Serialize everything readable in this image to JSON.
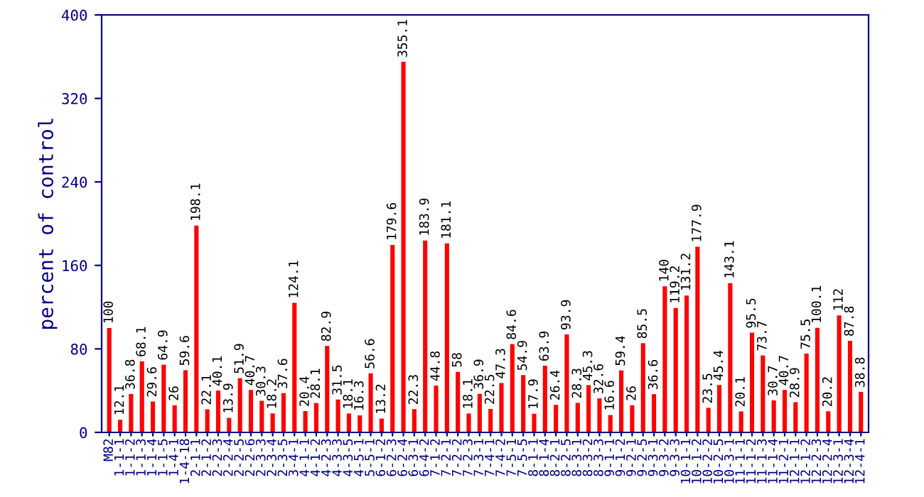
{
  "chart_data": {
    "type": "bar",
    "ylabel": "percent of control",
    "categories": [
      "M82",
      "1-1-1",
      "1-1-2",
      "1-1-3",
      "1-1-4",
      "1-1-5",
      "1-4-1",
      "1-4-18",
      "2-1-1",
      "2-1-2",
      "2-2-3",
      "2-2-4",
      "2-2-5",
      "2-2-6",
      "2-3-3",
      "2-3-4",
      "2-3-5",
      "3-4-1",
      "4-1-1",
      "4-1-2",
      "4-2-3",
      "4-3-3",
      "4-3-5",
      "4-5-1",
      "5-5-1",
      "6-1-2",
      "6-2-3",
      "6-2-4",
      "6-3-1",
      "6-4-2",
      "7-1-2",
      "7-2-1",
      "7-2-2",
      "7-2-3",
      "7-3-1",
      "7-4-1",
      "7-4-2",
      "7-5-1",
      "7-5-5",
      "8-1-1",
      "8-1-4",
      "8-2-1",
      "8-2-5",
      "8-3-1",
      "8-3-2",
      "8-3-3",
      "9-1-1",
      "9-1-2",
      "9-2-1",
      "9-2-5",
      "9-3-1",
      "9-3-2",
      "9-3-3",
      "10-1-1",
      "10-1-2",
      "10-2-2",
      "10-2-5",
      "10-3-1",
      "11-1-1",
      "11-1-2",
      "11-1-3",
      "11-1-4",
      "11-2-1",
      "12-1-1",
      "12-1-2",
      "12-2-3",
      "12-2-4",
      "12-3-1",
      "12-3-4",
      "12-4-1"
    ],
    "values": [
      100,
      12.1,
      36.8,
      68.1,
      29.6,
      64.9,
      26,
      59.6,
      198.1,
      22.1,
      40.1,
      13.9,
      51.9,
      40.7,
      30.3,
      18.2,
      37.6,
      124.1,
      20.4,
      28.1,
      82.9,
      31.5,
      18.1,
      16.3,
      56.6,
      13.2,
      179.6,
      355.1,
      22.3,
      183.9,
      44.8,
      181.1,
      58,
      18.1,
      36.9,
      22.5,
      47.3,
      84.6,
      54.9,
      17.9,
      63.9,
      26.4,
      93.9,
      28.3,
      45.3,
      32.6,
      16.6,
      59.4,
      26,
      85.5,
      36.6,
      140,
      119.2,
      131.2,
      177.9,
      23.5,
      45.4,
      143.1,
      20.1,
      95.5,
      73.7,
      30.7,
      40.7,
      28.9,
      75.5,
      100.1,
      20.2,
      112,
      87.8,
      38.8
    ],
    "color": "#ff0000",
    "ylim": [
      0,
      400
    ],
    "yticks": [
      0,
      80,
      160,
      240,
      320,
      400
    ],
    "data_labels": true,
    "grid": false
  }
}
